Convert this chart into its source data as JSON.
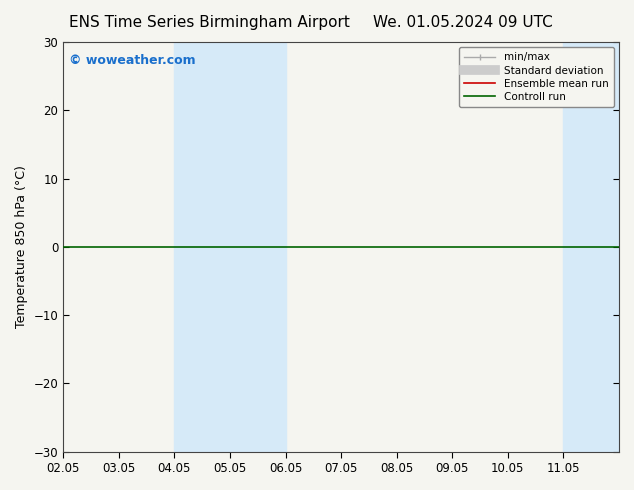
{
  "title_left": "ENS Time Series Birmingham Airport",
  "title_right": "We. 01.05.2024 09 UTC",
  "ylabel": "Temperature 850 hPa (°C)",
  "ylim": [
    -30,
    30
  ],
  "yticks": [
    -30,
    -20,
    -10,
    0,
    10,
    20,
    30
  ],
  "xlim": [
    0,
    10
  ],
  "xtick_labels": [
    "02.05",
    "03.05",
    "04.05",
    "05.05",
    "06.05",
    "07.05",
    "08.05",
    "09.05",
    "10.05",
    "11.05"
  ],
  "xtick_positions": [
    0,
    1,
    2,
    3,
    4,
    5,
    6,
    7,
    8,
    9
  ],
  "shaded_bands": [
    {
      "x_start": 2,
      "x_end": 3,
      "color": "#d6eaf8"
    },
    {
      "x_start": 3,
      "x_end": 4,
      "color": "#d6eaf8"
    },
    {
      "x_start": 9,
      "x_end": 10,
      "color": "#d6eaf8"
    }
  ],
  "hline_y": 0,
  "hline_color": "#006400",
  "watermark": "© woweather.com",
  "watermark_color": "#1a6fcc",
  "legend_labels": [
    "min/max",
    "Standard deviation",
    "Ensemble mean run",
    "Controll run"
  ],
  "legend_colors": [
    "#aaaaaa",
    "#cccccc",
    "#cc0000",
    "#006400"
  ],
  "bg_color": "#f5f5f0",
  "plot_bg_color": "#f5f5f0",
  "title_fontsize": 11,
  "tick_fontsize": 8.5,
  "ylabel_fontsize": 9
}
